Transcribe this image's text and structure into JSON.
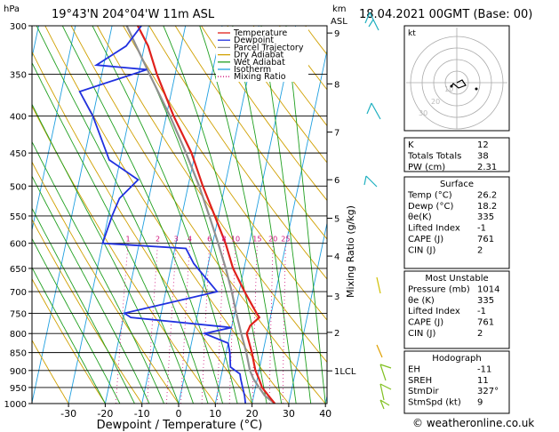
{
  "header": {
    "location": "19°43'N  204°04'W  11m  ASL",
    "datetime": "18.04.2021  00GMT  (Base: 00)"
  },
  "axes": {
    "left_unit": "hPa",
    "right_unit_km": "km",
    "right_unit_asl": "ASL",
    "xlabel": "Dewpoint / Temperature (°C)",
    "mixing_label": "Mixing Ratio (g/kg)",
    "pressure_ticks": [
      300,
      350,
      400,
      450,
      500,
      550,
      600,
      650,
      700,
      750,
      800,
      850,
      900,
      950,
      1000
    ],
    "temp_ticks": [
      -30,
      -20,
      -10,
      0,
      10,
      20,
      30,
      40
    ],
    "km_ticks": [
      {
        "label": "9",
        "p": 307
      },
      {
        "label": "8",
        "p": 361
      },
      {
        "label": "7",
        "p": 421
      },
      {
        "label": "6",
        "p": 490
      },
      {
        "label": "5",
        "p": 554
      },
      {
        "label": "4",
        "p": 625
      },
      {
        "label": "3",
        "p": 710
      },
      {
        "label": "2",
        "p": 797
      },
      {
        "label": "1LCL",
        "p": 901
      }
    ],
    "mixing_ratio_labels": [
      "1",
      "2",
      "3",
      "4",
      "6",
      "8",
      "10",
      "15",
      "20",
      "25"
    ]
  },
  "legend": [
    {
      "label": "Temperature",
      "color": "#e0201b",
      "style": "solid"
    },
    {
      "label": "Dewpoint",
      "color": "#2030e0",
      "style": "solid"
    },
    {
      "label": "Parcel Trajectory",
      "color": "#909090",
      "style": "solid"
    },
    {
      "label": "Dry Adiabat",
      "color": "#d0a000",
      "style": "solid"
    },
    {
      "label": "Wet Adiabat",
      "color": "#20a020",
      "style": "solid"
    },
    {
      "label": "Isotherm",
      "color": "#20a0e0",
      "style": "solid"
    },
    {
      "label": "Mixing Ratio",
      "color": "#d0107a",
      "style": "dotted"
    }
  ],
  "chart_data": {
    "type": "skew-t",
    "ylim_hpa": [
      300,
      1000
    ],
    "xlim_c": [
      -40,
      40
    ],
    "temperature": [
      {
        "p": 1000,
        "t": 26.2
      },
      {
        "p": 975,
        "t": 24
      },
      {
        "p": 950,
        "t": 21.8
      },
      {
        "p": 925,
        "t": 20.5
      },
      {
        "p": 900,
        "t": 19
      },
      {
        "p": 850,
        "t": 17
      },
      {
        "p": 800,
        "t": 14.5
      },
      {
        "p": 780,
        "t": 15
      },
      {
        "p": 760,
        "t": 17
      },
      {
        "p": 750,
        "t": 16
      },
      {
        "p": 700,
        "t": 11.5
      },
      {
        "p": 650,
        "t": 7
      },
      {
        "p": 600,
        "t": 3.5
      },
      {
        "p": 550,
        "t": -1
      },
      {
        "p": 500,
        "t": -6
      },
      {
        "p": 450,
        "t": -11
      },
      {
        "p": 400,
        "t": -18
      },
      {
        "p": 350,
        "t": -25
      },
      {
        "p": 320,
        "t": -29
      },
      {
        "p": 300,
        "t": -33
      }
    ],
    "dewpoint": [
      {
        "p": 1000,
        "t": 18.2
      },
      {
        "p": 975,
        "t": 17.5
      },
      {
        "p": 950,
        "t": 16.5
      },
      {
        "p": 925,
        "t": 15.5
      },
      {
        "p": 910,
        "t": 15
      },
      {
        "p": 890,
        "t": 12
      },
      {
        "p": 850,
        "t": 11
      },
      {
        "p": 825,
        "t": 10
      },
      {
        "p": 800,
        "t": 3
      },
      {
        "p": 785,
        "t": 10
      },
      {
        "p": 760,
        "t": -18
      },
      {
        "p": 750,
        "t": -20
      },
      {
        "p": 700,
        "t": 4
      },
      {
        "p": 640,
        "t": -4
      },
      {
        "p": 610,
        "t": -7
      },
      {
        "p": 600,
        "t": -30
      },
      {
        "p": 550,
        "t": -29
      },
      {
        "p": 520,
        "t": -28
      },
      {
        "p": 490,
        "t": -24
      },
      {
        "p": 460,
        "t": -33
      },
      {
        "p": 400,
        "t": -40
      },
      {
        "p": 370,
        "t": -45
      },
      {
        "p": 345,
        "t": -28
      },
      {
        "p": 340,
        "t": -42
      },
      {
        "p": 320,
        "t": -35
      },
      {
        "p": 300,
        "t": -32
      }
    ],
    "parcel": [
      {
        "p": 1000,
        "t": 26.2
      },
      {
        "p": 975,
        "t": 23
      },
      {
        "p": 950,
        "t": 21
      },
      {
        "p": 925,
        "t": 19
      },
      {
        "p": 900,
        "t": 17.5
      },
      {
        "p": 850,
        "t": 15.5
      },
      {
        "p": 800,
        "t": 13
      },
      {
        "p": 750,
        "t": 10.5
      },
      {
        "p": 700,
        "t": 8
      },
      {
        "p": 650,
        "t": 5
      },
      {
        "p": 600,
        "t": 1.5
      },
      {
        "p": 550,
        "t": -2.5
      },
      {
        "p": 500,
        "t": -7
      },
      {
        "p": 450,
        "t": -12.5
      },
      {
        "p": 400,
        "t": -19
      },
      {
        "p": 350,
        "t": -27
      },
      {
        "p": 300,
        "t": -36
      }
    ]
  },
  "hodograph": {
    "label": "kt",
    "ring_labels": [
      "10",
      "20",
      "30"
    ]
  },
  "indices": [
    {
      "name": "K",
      "value": "12"
    },
    {
      "name": "Totals Totals",
      "value": "38"
    },
    {
      "name": "PW (cm)",
      "value": "2.31"
    }
  ],
  "surface": {
    "title": "Surface",
    "rows": [
      {
        "name": "Temp (°C)",
        "value": "26.2"
      },
      {
        "name": "Dewp (°C)",
        "value": "18.2"
      },
      {
        "name": "θe(K)",
        "value": "335"
      },
      {
        "name": "Lifted Index",
        "value": "-1"
      },
      {
        "name": "CAPE (J)",
        "value": "761"
      },
      {
        "name": "CIN (J)",
        "value": "2"
      }
    ]
  },
  "most_unstable": {
    "title": "Most Unstable",
    "rows": [
      {
        "name": "Pressure (mb)",
        "value": "1014"
      },
      {
        "name": "θe (K)",
        "value": "335"
      },
      {
        "name": "Lifted Index",
        "value": "-1"
      },
      {
        "name": "CAPE (J)",
        "value": "761"
      },
      {
        "name": "CIN (J)",
        "value": "2"
      }
    ]
  },
  "hodo_table": {
    "title": "Hodograph",
    "rows": [
      {
        "name": "EH",
        "value": "-11"
      },
      {
        "name": "SREH",
        "value": "11"
      },
      {
        "name": "StmDir",
        "value": "327°"
      },
      {
        "name": "StmSpd (kt)",
        "value": "9"
      }
    ]
  },
  "footer": {
    "credit": "© weatheronline.co.uk"
  }
}
